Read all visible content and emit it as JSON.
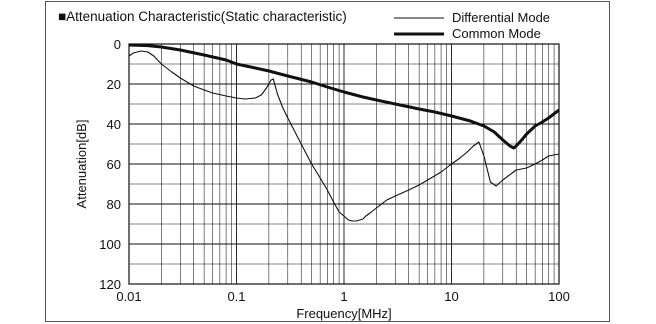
{
  "chart_data": {
    "type": "line",
    "title": "■Attenuation Characteristic(Static characteristic)",
    "xlabel": "Frequency[MHz]",
    "ylabel": "Attenuation[dB]",
    "x_scale": "log",
    "xlim": [
      0.01,
      100
    ],
    "ylim": [
      0,
      120
    ],
    "y_inverted": true,
    "grid": true,
    "legend_position": "top-right",
    "x_tick_labels": [
      "0.01",
      "0.1",
      "1",
      "10",
      "100"
    ],
    "x_ticks": [
      0.01,
      0.1,
      1,
      10,
      100
    ],
    "y_tick_labels": [
      "0",
      "20",
      "40",
      "60",
      "80",
      "100",
      "120"
    ],
    "y_ticks": [
      0,
      20,
      40,
      60,
      80,
      100,
      120
    ],
    "series": [
      {
        "name": "Differential Mode",
        "color": "#111111",
        "line_style": "thin",
        "x": [
          0.01,
          0.011,
          0.013,
          0.015,
          0.017,
          0.02,
          0.025,
          0.03,
          0.04,
          0.05,
          0.06,
          0.08,
          0.1,
          0.12,
          0.15,
          0.17,
          0.19,
          0.21,
          0.22,
          0.24,
          0.27,
          0.3,
          0.35,
          0.4,
          0.5,
          0.6,
          0.7,
          0.8,
          0.9,
          1.0,
          1.1,
          1.2,
          1.3,
          1.4,
          1.5,
          1.6,
          1.8,
          2.0,
          2.5,
          3.0,
          4.0,
          5.0,
          6.0,
          8.0,
          10.0,
          12.0,
          14.0,
          16.0,
          18.0,
          20.0,
          23.0,
          26.0,
          30.0,
          40.0,
          50.0,
          60.0,
          70.0,
          80.0,
          100.0
        ],
        "y": [
          6,
          4.5,
          3.5,
          4,
          6,
          10,
          14,
          17,
          21,
          23,
          24.5,
          26,
          27,
          27.5,
          27,
          25.5,
          22,
          18,
          17.5,
          25,
          32,
          37,
          44,
          50,
          60,
          67,
          73,
          79,
          84,
          86,
          88,
          88.5,
          88.5,
          88,
          87.5,
          86,
          84,
          82,
          78,
          76,
          73,
          70.5,
          68,
          64,
          60,
          57,
          54,
          51,
          49,
          56,
          69,
          71,
          68,
          63,
          62,
          60,
          58,
          56,
          55
        ]
      },
      {
        "name": "Common Mode",
        "color": "#111111",
        "line_style": "thick",
        "x": [
          0.01,
          0.015,
          0.02,
          0.03,
          0.05,
          0.08,
          0.1,
          0.15,
          0.2,
          0.3,
          0.5,
          0.7,
          1.0,
          1.5,
          2.0,
          3.0,
          5.0,
          7.0,
          10.0,
          15.0,
          20.0,
          25.0,
          30.0,
          35.0,
          38.0,
          40.0,
          45.0,
          50.0,
          60.0,
          70.0,
          80.0,
          100.0
        ],
        "y": [
          0.5,
          0.8,
          1.5,
          3,
          5.5,
          8,
          10,
          12,
          13.5,
          16,
          19,
          21.5,
          24,
          26.5,
          28,
          30,
          32.5,
          34,
          36,
          38.5,
          41,
          44,
          48,
          51,
          52,
          51,
          48,
          45,
          41,
          39,
          37,
          33
        ]
      }
    ]
  }
}
